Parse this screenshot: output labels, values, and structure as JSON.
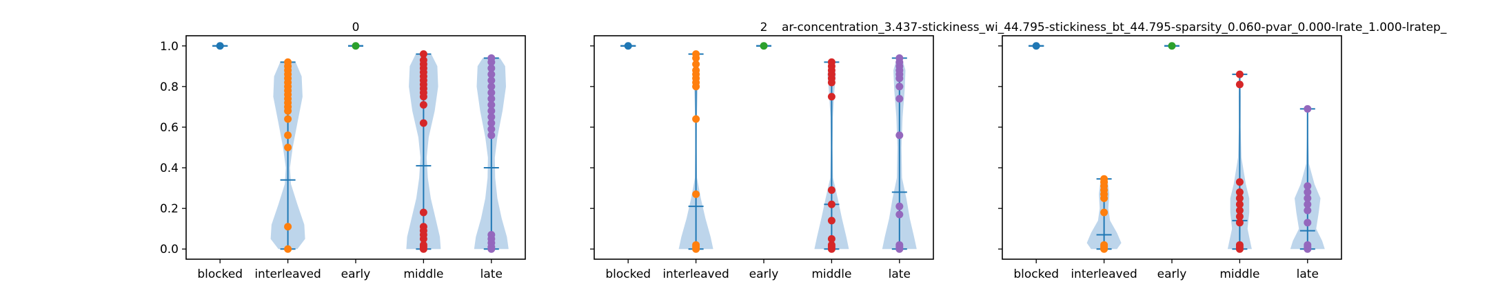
{
  "figure": {
    "suptitle": "ar-concentration_3.437-stickiness_wi_44.795-stickiness_bt_44.795-sparsity_0.060-pvar_0.000-lrate_1.000-lratep_"
  },
  "chart_data": [
    {
      "type": "violin",
      "title": "0",
      "categories": [
        "blocked",
        "interleaved",
        "early",
        "middle",
        "late"
      ],
      "ylim": [
        -0.05,
        1.05
      ],
      "yticks": [
        0.0,
        0.2,
        0.4,
        0.6,
        0.8,
        1.0
      ],
      "ytick_labels": [
        "0.0",
        "0.2",
        "0.4",
        "0.6",
        "0.8",
        "1.0"
      ],
      "grid": false,
      "colors": {
        "blocked": "#1f77b4",
        "interleaved": "#ff7f0e",
        "early": "#2ca02c",
        "middle": "#d62728",
        "late": "#9467bd",
        "violin_fill": "#b9d3ea",
        "whisker": "#1f77b4"
      },
      "series": [
        {
          "category": "blocked",
          "min": 1.0,
          "max": 1.0,
          "mean": 1.0,
          "points": [
            1.0
          ]
        },
        {
          "category": "interleaved",
          "min": 0.0,
          "max": 0.92,
          "mean": 0.34,
          "points": [
            0.0,
            0.11,
            0.5,
            0.56,
            0.64,
            0.68,
            0.7,
            0.72,
            0.74,
            0.76,
            0.78,
            0.8,
            0.82,
            0.84,
            0.86,
            0.88,
            0.9,
            0.92
          ]
        },
        {
          "category": "early",
          "min": 1.0,
          "max": 1.0,
          "mean": 1.0,
          "points": [
            1.0
          ]
        },
        {
          "category": "middle",
          "min": 0.0,
          "max": 0.96,
          "mean": 0.41,
          "points": [
            0.0,
            0.01,
            0.02,
            0.05,
            0.07,
            0.09,
            0.11,
            0.18,
            0.62,
            0.71,
            0.75,
            0.77,
            0.79,
            0.81,
            0.83,
            0.85,
            0.87,
            0.89,
            0.91,
            0.93,
            0.96
          ]
        },
        {
          "category": "late",
          "min": 0.0,
          "max": 0.94,
          "mean": 0.4,
          "points": [
            0.0,
            0.01,
            0.03,
            0.05,
            0.07,
            0.56,
            0.59,
            0.62,
            0.65,
            0.68,
            0.71,
            0.74,
            0.77,
            0.8,
            0.83,
            0.86,
            0.89,
            0.92,
            0.94
          ]
        }
      ],
      "violin_profiles": {
        "interleaved": [
          [
            0.0,
            0.55
          ],
          [
            0.05,
            1.0
          ],
          [
            0.12,
            0.95
          ],
          [
            0.22,
            0.55
          ],
          [
            0.32,
            0.18
          ],
          [
            0.4,
            0.12
          ],
          [
            0.5,
            0.28
          ],
          [
            0.62,
            0.55
          ],
          [
            0.75,
            0.85
          ],
          [
            0.85,
            0.8
          ],
          [
            0.92,
            0.45
          ]
        ],
        "middle": [
          [
            0.0,
            1.0
          ],
          [
            0.06,
            0.95
          ],
          [
            0.15,
            0.7
          ],
          [
            0.25,
            0.42
          ],
          [
            0.35,
            0.25
          ],
          [
            0.45,
            0.18
          ],
          [
            0.55,
            0.3
          ],
          [
            0.68,
            0.65
          ],
          [
            0.8,
            0.85
          ],
          [
            0.9,
            0.8
          ],
          [
            0.96,
            0.45
          ]
        ],
        "late": [
          [
            0.0,
            1.0
          ],
          [
            0.06,
            0.9
          ],
          [
            0.15,
            0.6
          ],
          [
            0.25,
            0.35
          ],
          [
            0.35,
            0.22
          ],
          [
            0.45,
            0.2
          ],
          [
            0.55,
            0.35
          ],
          [
            0.68,
            0.65
          ],
          [
            0.8,
            0.85
          ],
          [
            0.9,
            0.8
          ],
          [
            0.94,
            0.5
          ]
        ]
      }
    },
    {
      "type": "violin",
      "title": "2",
      "categories": [
        "blocked",
        "interleaved",
        "early",
        "middle",
        "late"
      ],
      "ylim": [
        -0.05,
        1.05
      ],
      "yticks": [
        0.0,
        0.2,
        0.4,
        0.6,
        0.8,
        1.0
      ],
      "ytick_labels": [],
      "grid": false,
      "series": [
        {
          "category": "blocked",
          "min": 1.0,
          "max": 1.0,
          "mean": 1.0,
          "points": [
            1.0
          ]
        },
        {
          "category": "interleaved",
          "min": 0.0,
          "max": 0.96,
          "mean": 0.21,
          "points": [
            0.0,
            0.01,
            0.02,
            0.27,
            0.64,
            0.8,
            0.82,
            0.84,
            0.86,
            0.88,
            0.91,
            0.94,
            0.96
          ]
        },
        {
          "category": "early",
          "min": 1.0,
          "max": 1.0,
          "mean": 1.0,
          "points": [
            1.0
          ]
        },
        {
          "category": "middle",
          "min": 0.0,
          "max": 0.92,
          "mean": 0.22,
          "points": [
            0.0,
            0.01,
            0.02,
            0.05,
            0.14,
            0.22,
            0.29,
            0.75,
            0.82,
            0.84,
            0.86,
            0.88,
            0.9,
            0.92
          ]
        },
        {
          "category": "late",
          "min": 0.0,
          "max": 0.94,
          "mean": 0.28,
          "points": [
            0.0,
            0.01,
            0.02,
            0.17,
            0.21,
            0.56,
            0.74,
            0.8,
            0.84,
            0.86,
            0.88,
            0.9,
            0.92,
            0.94
          ]
        }
      ],
      "violin_profiles": {
        "interleaved": [
          [
            0.0,
            1.0
          ],
          [
            0.06,
            0.85
          ],
          [
            0.15,
            0.55
          ],
          [
            0.25,
            0.28
          ],
          [
            0.35,
            0.06
          ],
          [
            0.5,
            0.04
          ],
          [
            0.65,
            0.05
          ],
          [
            0.78,
            0.1
          ],
          [
            0.88,
            0.14
          ],
          [
            0.96,
            0.06
          ]
        ],
        "middle": [
          [
            0.0,
            1.0
          ],
          [
            0.06,
            0.85
          ],
          [
            0.15,
            0.6
          ],
          [
            0.25,
            0.35
          ],
          [
            0.35,
            0.08
          ],
          [
            0.5,
            0.05
          ],
          [
            0.65,
            0.07
          ],
          [
            0.78,
            0.16
          ],
          [
            0.86,
            0.24
          ],
          [
            0.92,
            0.1
          ]
        ],
        "late": [
          [
            0.0,
            1.0
          ],
          [
            0.06,
            0.85
          ],
          [
            0.15,
            0.6
          ],
          [
            0.25,
            0.4
          ],
          [
            0.35,
            0.15
          ],
          [
            0.5,
            0.12
          ],
          [
            0.65,
            0.18
          ],
          [
            0.78,
            0.3
          ],
          [
            0.88,
            0.35
          ],
          [
            0.94,
            0.15
          ]
        ]
      }
    },
    {
      "type": "violin",
      "title": "",
      "categories": [
        "blocked",
        "interleaved",
        "early",
        "middle",
        "late"
      ],
      "ylim": [
        -0.05,
        1.05
      ],
      "yticks": [
        0.0,
        0.2,
        0.4,
        0.6,
        0.8,
        1.0
      ],
      "ytick_labels": [],
      "grid": false,
      "series": [
        {
          "category": "blocked",
          "min": 1.0,
          "max": 1.0,
          "mean": 1.0,
          "points": [
            1.0
          ]
        },
        {
          "category": "interleaved",
          "min": 0.0,
          "max": 0.345,
          "mean": 0.07,
          "points": [
            0.0,
            0.01,
            0.02,
            0.18,
            0.25,
            0.27,
            0.29,
            0.31,
            0.33,
            0.345
          ]
        },
        {
          "category": "early",
          "min": 1.0,
          "max": 1.0,
          "mean": 1.0,
          "points": [
            1.0
          ]
        },
        {
          "category": "middle",
          "min": 0.0,
          "max": 0.86,
          "mean": 0.14,
          "points": [
            0.0,
            0.01,
            0.02,
            0.13,
            0.16,
            0.19,
            0.22,
            0.25,
            0.28,
            0.33,
            0.81,
            0.86
          ]
        },
        {
          "category": "late",
          "min": 0.0,
          "max": 0.69,
          "mean": 0.09,
          "points": [
            0.0,
            0.01,
            0.02,
            0.13,
            0.19,
            0.22,
            0.25,
            0.28,
            0.31,
            0.69
          ]
        }
      ],
      "violin_profiles": {
        "interleaved": [
          [
            0.0,
            0.75
          ],
          [
            0.03,
            1.0
          ],
          [
            0.08,
            0.75
          ],
          [
            0.14,
            0.35
          ],
          [
            0.2,
            0.25
          ],
          [
            0.27,
            0.3
          ],
          [
            0.33,
            0.22
          ],
          [
            0.345,
            0.08
          ]
        ],
        "middle": [
          [
            0.0,
            0.7
          ],
          [
            0.04,
            0.6
          ],
          [
            0.1,
            0.45
          ],
          [
            0.18,
            0.55
          ],
          [
            0.25,
            0.55
          ],
          [
            0.32,
            0.35
          ],
          [
            0.45,
            0.1
          ],
          [
            0.6,
            0.05
          ],
          [
            0.75,
            0.06
          ],
          [
            0.86,
            0.04
          ]
        ],
        "late": [
          [
            0.0,
            1.0
          ],
          [
            0.04,
            0.85
          ],
          [
            0.1,
            0.5
          ],
          [
            0.18,
            0.65
          ],
          [
            0.25,
            0.75
          ],
          [
            0.32,
            0.4
          ],
          [
            0.42,
            0.08
          ],
          [
            0.55,
            0.04
          ],
          [
            0.69,
            0.03
          ]
        ]
      }
    }
  ]
}
